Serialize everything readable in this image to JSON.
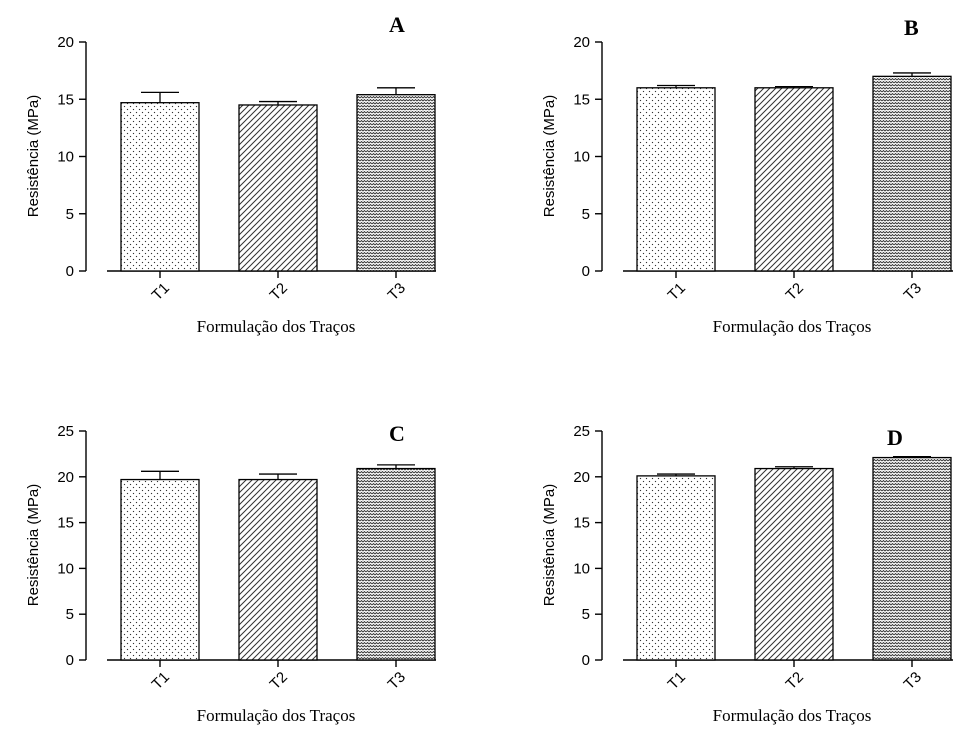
{
  "chart_data": [
    {
      "type": "bar",
      "panel_label": "A",
      "categories": [
        "T1",
        "T2",
        "T3"
      ],
      "values": [
        14.7,
        14.5,
        15.4
      ],
      "errors": [
        0.9,
        0.3,
        0.6
      ],
      "xlabel": "Formulação dos Traços",
      "ylabel": "Resistência (MPa)",
      "ylim": [
        0,
        20
      ],
      "yticks": [
        0,
        5,
        10,
        15,
        20
      ],
      "grid": false
    },
    {
      "type": "bar",
      "panel_label": "B",
      "categories": [
        "T1",
        "T2",
        "T3"
      ],
      "values": [
        16.0,
        16.0,
        17.0
      ],
      "errors": [
        0.2,
        0.1,
        0.3
      ],
      "xlabel": "Formulação dos Traços",
      "ylabel": "Resistência (MPa)",
      "ylim": [
        0,
        20
      ],
      "yticks": [
        0,
        5,
        10,
        15,
        20
      ],
      "grid": false
    },
    {
      "type": "bar",
      "panel_label": "C",
      "categories": [
        "T1",
        "T2",
        "T3"
      ],
      "values": [
        19.7,
        19.7,
        20.9
      ],
      "errors": [
        0.9,
        0.6,
        0.4
      ],
      "xlabel": "Formulação dos Traços",
      "ylabel": "Resistência (MPa)",
      "ylim": [
        0,
        25
      ],
      "yticks": [
        0,
        5,
        10,
        15,
        20,
        25
      ],
      "grid": false
    },
    {
      "type": "bar",
      "panel_label": "D",
      "categories": [
        "T1",
        "T2",
        "T3"
      ],
      "values": [
        20.1,
        20.9,
        22.1
      ],
      "errors": [
        0.2,
        0.2,
        0.1
      ],
      "xlabel": "Formulação dos Traços",
      "ylabel": "Resistência (MPa)",
      "ylim": [
        0,
        25
      ],
      "yticks": [
        0,
        5,
        10,
        15,
        20,
        25
      ],
      "grid": false
    }
  ]
}
